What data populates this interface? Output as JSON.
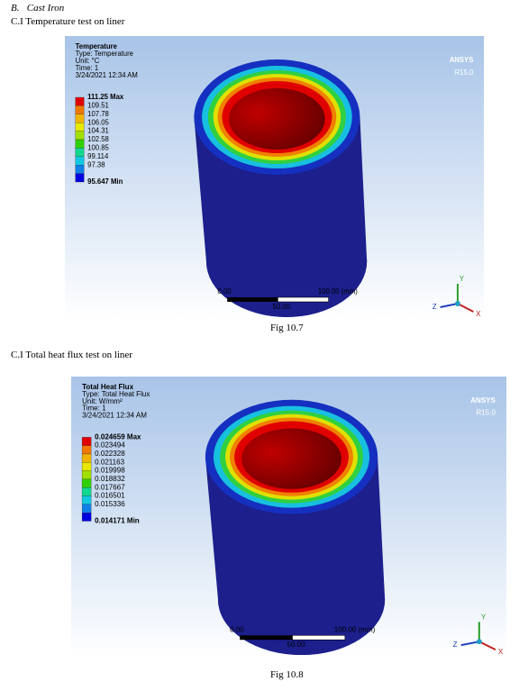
{
  "section": {
    "label": "B.",
    "title": "Cast Iron"
  },
  "figures": [
    {
      "heading": "C.I Temperature test on liner",
      "legend": {
        "title": "Temperature",
        "type": "Type: Temperature",
        "unit": "Unit: °C",
        "time": "Time: 1",
        "date": "3/24/2021 12:34 AM",
        "max": "111.25 Max",
        "levels": [
          "109.51",
          "107.78",
          "106.05",
          "104.31",
          "102.58",
          "100.85",
          "99.114",
          "97.38"
        ],
        "min": "95.647 Min"
      },
      "brand": "ANSYS",
      "version": "R15.0",
      "scale": {
        "start": "0.00",
        "end": "100.00 (mm)",
        "mid": "50.00"
      },
      "axes": {
        "y": "Y",
        "z": "Z",
        "x": "X"
      },
      "caption": "Fig 10.7"
    },
    {
      "heading": "C.I Total heat flux test on liner",
      "legend": {
        "title": "Total Heat Flux",
        "type": "Type: Total Heat Flux",
        "unit": "Unit: W/mm²",
        "time": "Time: 1",
        "date": "3/24/2021 12:34 AM",
        "max": "0.024659 Max",
        "levels": [
          "0.023494",
          "0.022328",
          "0.021163",
          "0.019998",
          "0.018832",
          "0.017667",
          "0.016501",
          "0.015336"
        ],
        "min": "0.014171 Min"
      },
      "brand": "ANSYS",
      "version": "R15.0",
      "scale": {
        "start": "0.00",
        "end": "100.00 (mm)",
        "mid": "50.00"
      },
      "axes": {
        "y": "Y",
        "z": "Z",
        "x": "X"
      },
      "caption": "Fig 10.8"
    }
  ]
}
